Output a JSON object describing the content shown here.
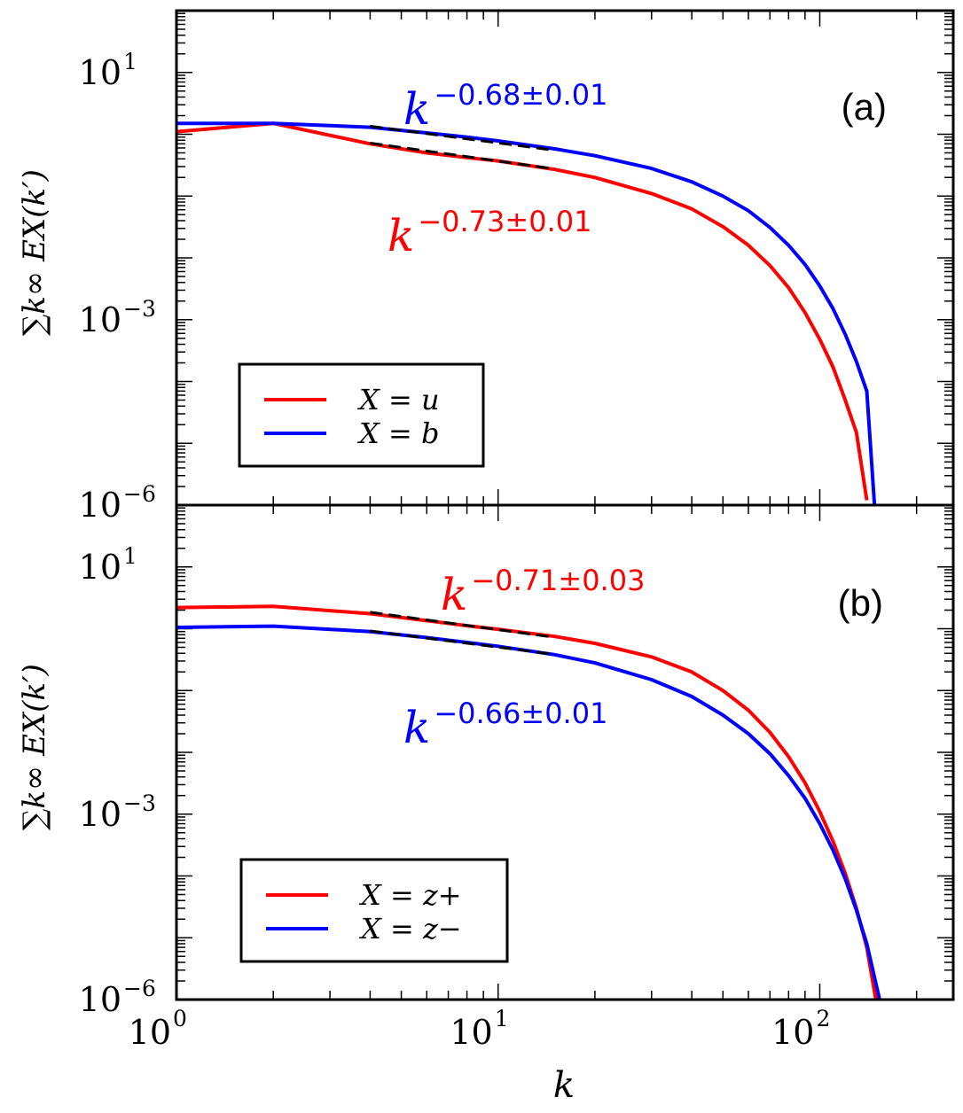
{
  "chart_data": [
    {
      "type": "line",
      "panel_label": "(a)",
      "xscale": "log",
      "yscale": "log",
      "xlim": [
        1,
        260
      ],
      "ylim": [
        1e-06,
        100
      ],
      "ylabel": "∑k∞ EX(k′)",
      "ytick_exponents": [
        "1",
        "−3",
        "−6"
      ],
      "legend_position": "lower-left",
      "series": [
        {
          "name": "X = u",
          "color": "#ff0000",
          "x": [
            1,
            2,
            4,
            6,
            8,
            10,
            15,
            20,
            30,
            40,
            50,
            60,
            70,
            80,
            90,
            100,
            110,
            120,
            130,
            140
          ],
          "y": [
            1.1,
            1.5,
            0.7,
            0.5,
            0.42,
            0.37,
            0.27,
            0.2,
            0.11,
            0.062,
            0.032,
            0.016,
            0.0075,
            0.0033,
            0.0013,
            0.00048,
            0.00017,
            5e-05,
            1.5e-05,
            1.2e-06
          ]
        },
        {
          "name": "X = b",
          "color": "#0000ff",
          "x": [
            1,
            2,
            4,
            6,
            8,
            10,
            15,
            20,
            30,
            40,
            50,
            60,
            70,
            80,
            90,
            100,
            110,
            120,
            130,
            140,
            148
          ],
          "y": [
            1.5,
            1.5,
            1.3,
            1.05,
            0.9,
            0.78,
            0.58,
            0.45,
            0.28,
            0.17,
            0.1,
            0.058,
            0.031,
            0.016,
            0.0078,
            0.0035,
            0.0015,
            0.00058,
            0.00021,
            7e-05,
            1e-06
          ]
        }
      ],
      "fits": [
        {
          "label": "k^{-0.68±0.01}",
          "base": "k",
          "exponent": "−0.68±0.01",
          "color": "#0000ff",
          "x_range": [
            4,
            15
          ],
          "y_start": 1.35,
          "slope": -0.68
        },
        {
          "label": "k^{-0.73±0.01}",
          "base": "k",
          "exponent": "−0.73±0.01",
          "color": "#ff0000",
          "x_range": [
            4,
            15
          ],
          "y_start": 0.72,
          "slope": -0.73
        }
      ]
    },
    {
      "type": "line",
      "panel_label": "(b)",
      "xscale": "log",
      "yscale": "log",
      "xlim": [
        1,
        260
      ],
      "ylim": [
        1e-06,
        100
      ],
      "xlabel": "k",
      "xtick_exponents": [
        "0",
        "1",
        "2"
      ],
      "ylabel": "∑k∞ EX(k′)",
      "ytick_exponents": [
        "1",
        "−3",
        "−6"
      ],
      "legend_position": "lower-left",
      "series": [
        {
          "name": "X = z+",
          "color": "#ff0000",
          "x": [
            1,
            2,
            4,
            6,
            8,
            10,
            15,
            20,
            30,
            40,
            50,
            60,
            70,
            80,
            90,
            100,
            110,
            120,
            130,
            140,
            150
          ],
          "y": [
            2.2,
            2.3,
            1.75,
            1.35,
            1.12,
            0.98,
            0.75,
            0.58,
            0.35,
            0.2,
            0.1,
            0.048,
            0.021,
            0.0085,
            0.0032,
            0.0011,
            0.00036,
            0.00011,
            3e-05,
            7e-06,
            9e-07
          ]
        },
        {
          "name": "X = z−",
          "color": "#0000ff",
          "x": [
            1,
            2,
            4,
            6,
            8,
            10,
            15,
            20,
            30,
            40,
            50,
            60,
            70,
            80,
            90,
            100,
            110,
            120,
            130,
            140,
            155
          ],
          "y": [
            1.05,
            1.1,
            0.9,
            0.72,
            0.6,
            0.52,
            0.38,
            0.28,
            0.15,
            0.08,
            0.04,
            0.02,
            0.0095,
            0.0042,
            0.0018,
            0.0007,
            0.00026,
            9e-05,
            2.8e-05,
            8e-06,
            8e-07
          ]
        }
      ],
      "fits": [
        {
          "label": "k^{-0.71±0.03}",
          "base": "k",
          "exponent": "−0.71±0.03",
          "color": "#ff0000",
          "x_range": [
            4,
            15
          ],
          "y_start": 1.85,
          "slope": -0.71
        },
        {
          "label": "k^{-0.66±0.01}",
          "base": "k",
          "exponent": "−0.66±0.01",
          "color": "#0000ff",
          "x_range": [
            4,
            15
          ],
          "y_start": 0.92,
          "slope": -0.66
        }
      ]
    }
  ],
  "tick_base": "10"
}
